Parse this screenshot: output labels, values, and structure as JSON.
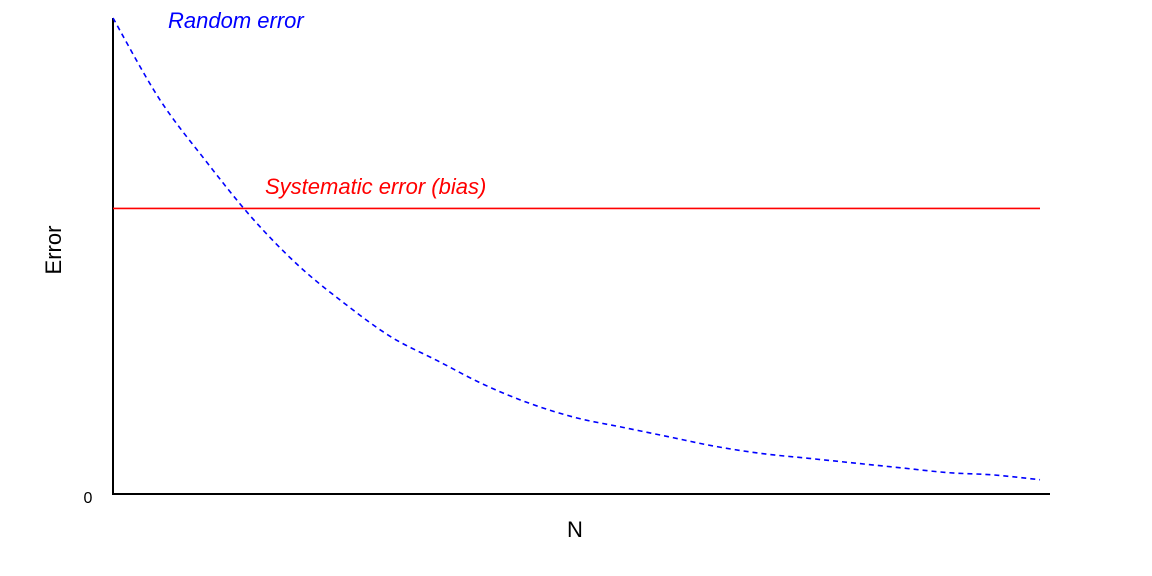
{
  "chart_data": {
    "type": "line",
    "xlabel": "N",
    "ylabel": "Error",
    "x_ticks": [
      "0"
    ],
    "y_tick_labels": [
      "0"
    ],
    "ylim": [
      0,
      1
    ],
    "xlim": [
      0,
      1
    ],
    "grid": false,
    "series": [
      {
        "name": "Random error",
        "style": "dashed",
        "color": "#0000ff",
        "x": [
          0,
          0.05,
          0.1,
          0.15,
          0.2,
          0.25,
          0.3,
          0.35,
          0.4,
          0.45,
          0.5,
          0.55,
          0.6,
          0.65,
          0.7,
          0.75,
          0.8,
          0.85,
          0.9,
          0.95,
          1.0
        ],
        "y": [
          1.0,
          0.83,
          0.7,
          0.58,
          0.48,
          0.4,
          0.33,
          0.28,
          0.23,
          0.19,
          0.16,
          0.14,
          0.12,
          0.1,
          0.085,
          0.075,
          0.065,
          0.055,
          0.045,
          0.04,
          0.03
        ]
      },
      {
        "name": "Systematic error (bias)",
        "style": "solid",
        "color": "#ff0000",
        "x": [
          0,
          1.0
        ],
        "y": [
          0.6,
          0.6
        ]
      }
    ],
    "annotations": [
      {
        "text": "Random error",
        "color": "#0000ff"
      },
      {
        "text": "Systematic error (bias)",
        "color": "#ff0000"
      }
    ]
  }
}
